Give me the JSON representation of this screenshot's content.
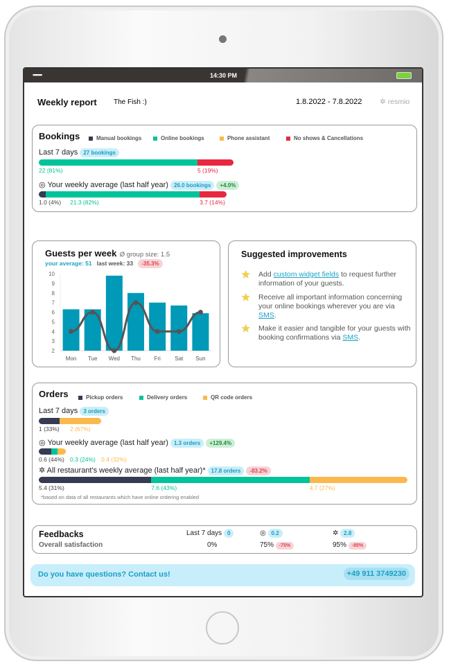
{
  "status": {
    "time": "14:30 PM",
    "signal": "▪▪▪▪▪▪"
  },
  "header": {
    "title": "Weekly report",
    "restaurant": "The Fish :)",
    "date_range": "1.8.2022 - 7.8.2022",
    "brand": "resmio"
  },
  "colors": {
    "manual": "#363b52",
    "online": "#00c39a",
    "phone": "#fbb84c",
    "noshow": "#e8283f",
    "accent": "#1aa3c7"
  },
  "bookings": {
    "title": "Bookings",
    "legend": [
      "Manual bookings",
      "Online bookings",
      "Phone assistant",
      "No shows & Cancellations"
    ],
    "last7": {
      "label": "Last 7 days",
      "badge": "27 bookings",
      "segments": [
        {
          "value": 22,
          "color": "#00c39a",
          "label": "22 (81%)",
          "lc": "#00c39a"
        },
        {
          "value": 5,
          "color": "#e8283f",
          "label": "5 (19%)",
          "lc": "#e8283f"
        }
      ]
    },
    "avg": {
      "label": "Your weekly average (last half year)",
      "badge": "26.0 bookings",
      "change": "+4.0%",
      "segments": [
        {
          "value": 1.0,
          "color": "#363b52",
          "label": "1.0 (4%)",
          "lc": "#444"
        },
        {
          "value": 21.3,
          "color": "#00c39a",
          "label": "21.3 (82%)",
          "lc": "#00c39a"
        },
        {
          "value": 3.7,
          "color": "#e8283f",
          "label": "3.7 (14%)",
          "lc": "#e8283f"
        }
      ]
    }
  },
  "guests": {
    "title": "Guests per week",
    "group_size": "Ø group size: 1.5",
    "your_average": "your average: 51",
    "last_week": "last week: 33",
    "change": "-35.3%"
  },
  "chart_data": {
    "type": "bar",
    "categories": [
      "Mon",
      "Tue",
      "Wed",
      "Thu",
      "Fri",
      "Sat",
      "Sun"
    ],
    "series": [
      {
        "type": "bar",
        "values": [
          6.3,
          6.3,
          9.8,
          8,
          7,
          6.7,
          5.9
        ],
        "color": "#0099b8"
      },
      {
        "type": "line",
        "values": [
          4,
          6,
          2,
          7,
          4,
          4,
          6
        ],
        "color": "#555555"
      }
    ],
    "ylim": [
      2,
      10
    ],
    "yticks": [
      2,
      3,
      4,
      5,
      6,
      7,
      8,
      9,
      10
    ]
  },
  "suggestions": {
    "title": "Suggested improvements",
    "items": [
      {
        "pre": "Add ",
        "link": "custom widget fields",
        "post": " to request further information of your guests."
      },
      {
        "pre": "Receive all important information concerning your online bookings wherever you are via ",
        "link": "SMS",
        "post": "."
      },
      {
        "pre": "Make it easier and tangible for your guests with booking confirmations via ",
        "link": "SMS",
        "post": "."
      }
    ]
  },
  "orders": {
    "title": "Orders",
    "legend": [
      "Pickup orders",
      "Delivery orders",
      "QR code orders"
    ],
    "last7": {
      "label": "Last 7 days",
      "badge": "3 orders",
      "segments": [
        {
          "value": 1,
          "color": "#363b52",
          "label": "1 (33%)",
          "lc": "#444"
        },
        {
          "value": 2,
          "color": "#fbb84c",
          "label": "2 (67%)",
          "lc": "#fbb84c"
        }
      ]
    },
    "avg": {
      "label": "Your weekly average (last half year)",
      "badge": "1.3 orders",
      "change": "+129.4%",
      "segments": [
        {
          "value": 0.6,
          "color": "#363b52",
          "label": "0.6 (44%)",
          "lc": "#444"
        },
        {
          "value": 0.3,
          "color": "#00c39a",
          "label": "0.3 (24%)",
          "lc": "#00c39a"
        },
        {
          "value": 0.4,
          "color": "#fbb84c",
          "label": "0.4 (32%)",
          "lc": "#fbb84c"
        }
      ]
    },
    "all": {
      "label": "All restaurant's weekly average (last half year)*",
      "badge": "17.8 orders",
      "change": "-83.2%",
      "segments": [
        {
          "value": 5.4,
          "color": "#363b52",
          "label": "5.4 (31%)",
          "lc": "#444"
        },
        {
          "value": 7.6,
          "color": "#00c39a",
          "label": "7.6 (43%)",
          "lc": "#00c39a"
        },
        {
          "value": 4.7,
          "color": "#fbb84c",
          "label": "4.7 (27%)",
          "lc": "#fbb84c"
        }
      ]
    },
    "footnote": "*based on data of all restaurants which have online ordering enabled"
  },
  "feedbacks": {
    "title": "Feedbacks",
    "row_label": "Overall satisfaction",
    "last7_label": "Last 7 days",
    "last7_count": "0",
    "last7_value": "0%",
    "own_count": "0.2",
    "own_value": "75%",
    "own_change": "-75%",
    "all_count": "2.8",
    "all_value": "95%",
    "all_change": "-95%"
  },
  "contact": {
    "text": "Do you have questions? Contact us!",
    "phone": "+49 911 3749230"
  }
}
